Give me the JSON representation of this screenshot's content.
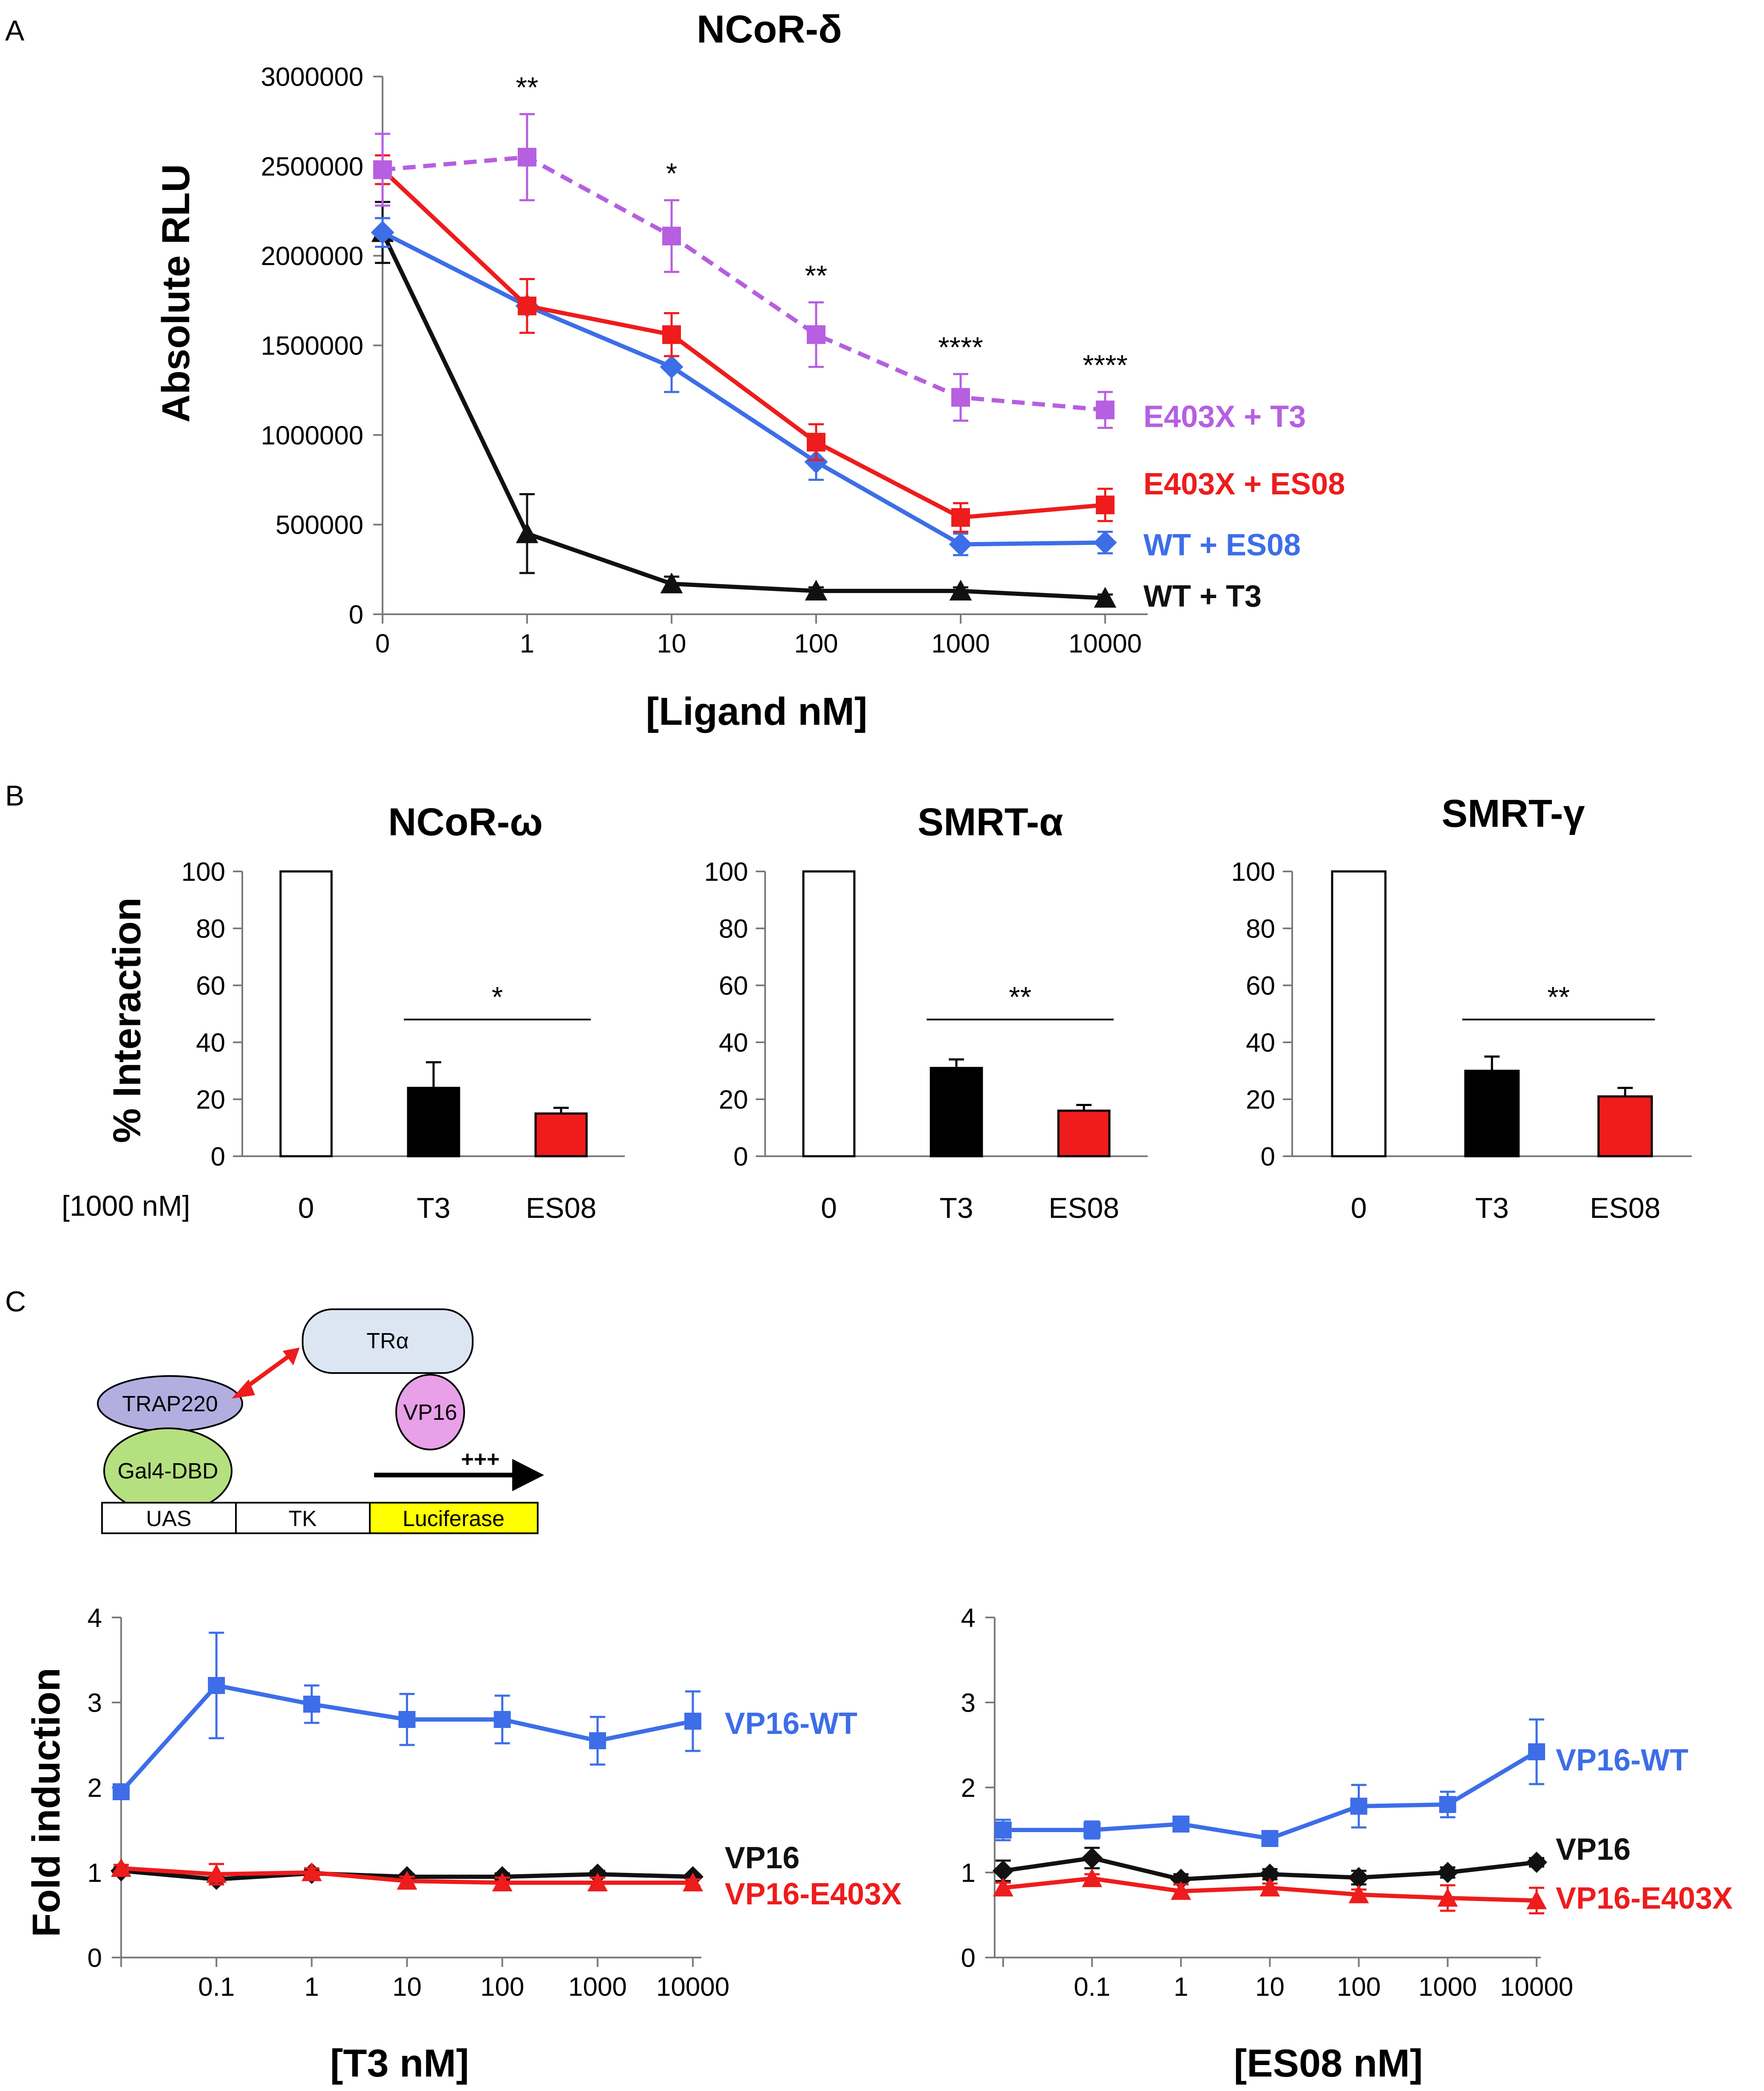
{
  "panels": {
    "a": "A",
    "b": "B",
    "c": "C"
  },
  "colors": {
    "purple": "#b65fe0",
    "red": "#ee1c1c",
    "blue": "#3d6ee8",
    "black": "#111111",
    "yellow": "#ffff00"
  },
  "chart_data": [
    {
      "id": "A",
      "type": "line",
      "title": "NCoR-δ",
      "xlabel": "[Ligand nM]",
      "ylabel": "Absolute RLU",
      "categories": [
        "0",
        "1",
        "10",
        "100",
        "1000",
        "10000"
      ],
      "yticks": [
        "0",
        "500000",
        "1000000",
        "1500000",
        "2000000",
        "2500000",
        "3000000"
      ],
      "ylim": [
        0,
        3000000
      ],
      "grid": false,
      "legend": "inline-right",
      "series": [
        {
          "name": "E403X + T3",
          "color": "#b65fe0",
          "marker": "square",
          "dashed": true,
          "values": [
            2480000,
            2550000,
            2110000,
            1560000,
            1210000,
            1140000
          ],
          "errors": [
            200000,
            240000,
            200000,
            180000,
            130000,
            100000
          ]
        },
        {
          "name": "E403X + ES08",
          "color": "#ee1c1c",
          "marker": "square",
          "dashed": false,
          "values": [
            2480000,
            1720000,
            1560000,
            960000,
            540000,
            610000
          ],
          "errors": [
            80000,
            150000,
            120000,
            100000,
            80000,
            90000
          ]
        },
        {
          "name": "WT + ES08",
          "color": "#3d6ee8",
          "marker": "diamond",
          "dashed": false,
          "values": [
            2130000,
            1720000,
            1380000,
            850000,
            390000,
            400000
          ],
          "errors": [
            80000,
            150000,
            140000,
            100000,
            60000,
            60000
          ]
        },
        {
          "name": "WT + T3",
          "color": "#111111",
          "marker": "triangle",
          "dashed": false,
          "values": [
            2130000,
            450000,
            170000,
            130000,
            130000,
            90000
          ],
          "errors": [
            170000,
            220000,
            40000,
            20000,
            20000,
            20000
          ]
        }
      ],
      "significance": [
        "",
        "**",
        "*",
        "**",
        "****",
        "****"
      ]
    },
    {
      "id": "B1",
      "type": "bar",
      "title": "NCoR-ω",
      "ylabel": "% Interaction",
      "condition_label": "[1000 nM]",
      "categories": [
        "0",
        "T3",
        "ES08"
      ],
      "values": [
        100,
        24,
        15
      ],
      "errors": [
        0,
        9,
        2
      ],
      "bar_colors": [
        "#ffffff",
        "#000000",
        "#ee1c1c"
      ],
      "yticks": [
        "0",
        "20",
        "40",
        "60",
        "80",
        "100"
      ],
      "ylim": [
        0,
        100
      ],
      "significance": "*"
    },
    {
      "id": "B2",
      "type": "bar",
      "title": "SMRT-α",
      "ylabel": "",
      "categories": [
        "0",
        "T3",
        "ES08"
      ],
      "values": [
        100,
        31,
        16
      ],
      "errors": [
        0,
        3,
        2
      ],
      "bar_colors": [
        "#ffffff",
        "#000000",
        "#ee1c1c"
      ],
      "yticks": [
        "0",
        "20",
        "40",
        "60",
        "80",
        "100"
      ],
      "ylim": [
        0,
        100
      ],
      "significance": "**"
    },
    {
      "id": "B3",
      "type": "bar",
      "title": "SMRT-γ",
      "ylabel": "",
      "categories": [
        "0",
        "T3",
        "ES08"
      ],
      "values": [
        100,
        30,
        21
      ],
      "errors": [
        0,
        5,
        3
      ],
      "bar_colors": [
        "#ffffff",
        "#000000",
        "#ee1c1c"
      ],
      "yticks": [
        "0",
        "20",
        "40",
        "60",
        "80",
        "100"
      ],
      "ylim": [
        0,
        100
      ],
      "significance": "**"
    },
    {
      "id": "C1",
      "type": "line",
      "xlabel": "[T3 nM]",
      "ylabel": "Fold induction",
      "categories": [
        "",
        "0.1",
        "1",
        "10",
        "100",
        "1000",
        "10000"
      ],
      "yticks": [
        "0",
        "1",
        "2",
        "3",
        "4"
      ],
      "ylim": [
        0,
        4
      ],
      "series": [
        {
          "name": "VP16-WT",
          "color": "#3d6ee8",
          "marker": "square",
          "values": [
            1.95,
            3.2,
            2.98,
            2.8,
            2.8,
            2.55,
            2.78
          ],
          "errors": [
            0.05,
            0.62,
            0.22,
            0.3,
            0.28,
            0.28,
            0.35
          ]
        },
        {
          "name": "VP16",
          "color": "#111111",
          "marker": "diamond",
          "values": [
            1.02,
            0.92,
            0.99,
            0.95,
            0.95,
            0.98,
            0.95
          ],
          "errors": [
            0.04,
            0.06,
            0.04,
            0.03,
            0.04,
            0.04,
            0.03
          ]
        },
        {
          "name": "VP16-E403X",
          "color": "#ee1c1c",
          "marker": "triangle",
          "values": [
            1.05,
            0.98,
            1.0,
            0.9,
            0.88,
            0.88,
            0.88
          ],
          "errors": [
            0.04,
            0.12,
            0.05,
            0.05,
            0.06,
            0.06,
            0.04
          ]
        }
      ]
    },
    {
      "id": "C2",
      "type": "line",
      "xlabel": "[ES08 nM]",
      "ylabel": "",
      "categories": [
        "",
        "0.1",
        "1",
        "10",
        "100",
        "1000",
        "10000"
      ],
      "yticks": [
        "0",
        "1",
        "2",
        "3",
        "4"
      ],
      "ylim": [
        0,
        4
      ],
      "series": [
        {
          "name": "VP16-WT",
          "color": "#3d6ee8",
          "marker": "square",
          "values": [
            1.5,
            1.5,
            1.57,
            1.4,
            1.78,
            1.8,
            2.42
          ],
          "errors": [
            0.12,
            0.1,
            0.08,
            0.08,
            0.25,
            0.15,
            0.38
          ]
        },
        {
          "name": "VP16",
          "color": "#111111",
          "marker": "diamond",
          "values": [
            1.02,
            1.17,
            0.92,
            0.98,
            0.94,
            1.0,
            1.12
          ],
          "errors": [
            0.12,
            0.12,
            0.06,
            0.06,
            0.08,
            0.06,
            0.05
          ]
        },
        {
          "name": "VP16-E403X",
          "color": "#ee1c1c",
          "marker": "triangle",
          "values": [
            0.82,
            0.93,
            0.78,
            0.82,
            0.74,
            0.7,
            0.67
          ],
          "errors": [
            0.06,
            0.05,
            0.08,
            0.05,
            0.06,
            0.15,
            0.15
          ]
        }
      ]
    }
  ],
  "diagram": {
    "tr_label": "TRα",
    "vp16_label": "VP16",
    "trap_label": "TRAP220",
    "gal4_label": "Gal4-DBD",
    "arrow_label": "+++",
    "uas_label": "UAS",
    "tk_label": "TK",
    "luciferase_label": "Luciferase"
  }
}
